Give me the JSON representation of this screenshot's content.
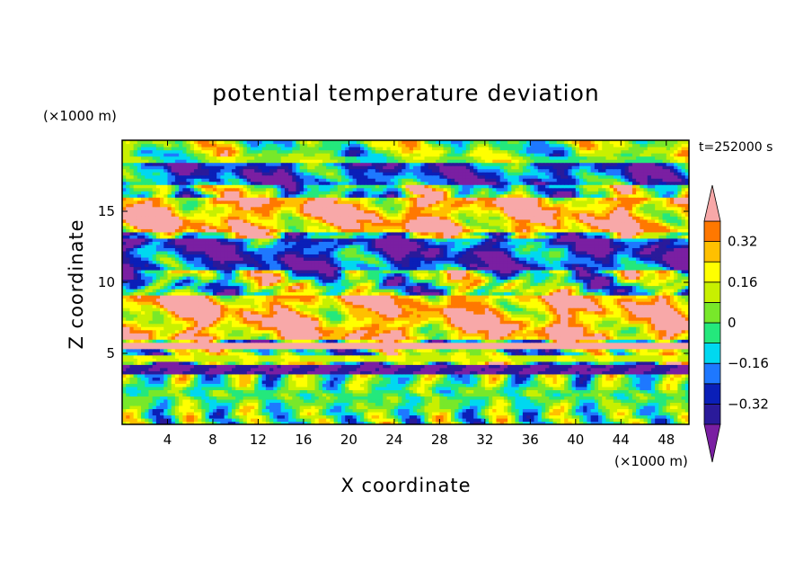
{
  "chart_data": {
    "type": "heatmap",
    "title": "potential temperature deviation",
    "xlabel": "X coordinate",
    "ylabel": "Z coordinate",
    "x_unit": "(×1000 m)",
    "y_unit": "(×1000 m)",
    "time_label": "t=252000 s",
    "xlim": [
      0,
      50
    ],
    "ylim": [
      0,
      20
    ],
    "x_ticks": [
      "4",
      "8",
      "12",
      "16",
      "20",
      "24",
      "28",
      "32",
      "36",
      "40",
      "44",
      "48"
    ],
    "x_tick_values": [
      4,
      8,
      12,
      16,
      20,
      24,
      28,
      32,
      36,
      40,
      44,
      48
    ],
    "y_ticks": [
      "5",
      "10",
      "15"
    ],
    "y_tick_values": [
      5,
      10,
      15
    ],
    "colorbar": {
      "levels": [
        -0.4,
        -0.32,
        -0.24,
        -0.16,
        -0.08,
        0,
        0.08,
        0.16,
        0.24,
        0.32,
        0.4
      ],
      "labels": [
        "0.32",
        "0.16",
        "0",
        "−0.16",
        "−0.32"
      ],
      "label_values": [
        0.32,
        0.16,
        0,
        -0.16,
        -0.32
      ],
      "colors": [
        "#7a1fa2",
        "#2a1a9a",
        "#0a1fb8",
        "#1e78ff",
        "#00d8f0",
        "#24e87c",
        "#78e82a",
        "#c8f000",
        "#ffff00",
        "#ffc000",
        "#ff7800",
        "#ff3c3c",
        "#f8a8a8"
      ],
      "extend": "both"
    },
    "bands": [
      {
        "z_from": 19,
        "z_to": 20,
        "value": 0.05
      },
      {
        "z_from": 17,
        "z_to": 18.5,
        "value": -0.35
      },
      {
        "z_from": 13.5,
        "z_to": 16,
        "value": 0.45
      },
      {
        "z_from": 11,
        "z_to": 13,
        "value": -0.4
      },
      {
        "z_from": 6,
        "z_to": 9,
        "value": 0.45
      },
      {
        "z_from": 5.3,
        "z_to": 5.7,
        "value": 0.45
      },
      {
        "z_from": 4.4,
        "z_to": 4.9,
        "value": 0.15
      },
      {
        "z_from": 3.6,
        "z_to": 4.2,
        "value": -0.4
      },
      {
        "z_from": 0,
        "z_to": 3.5,
        "value": 0.0
      }
    ]
  }
}
